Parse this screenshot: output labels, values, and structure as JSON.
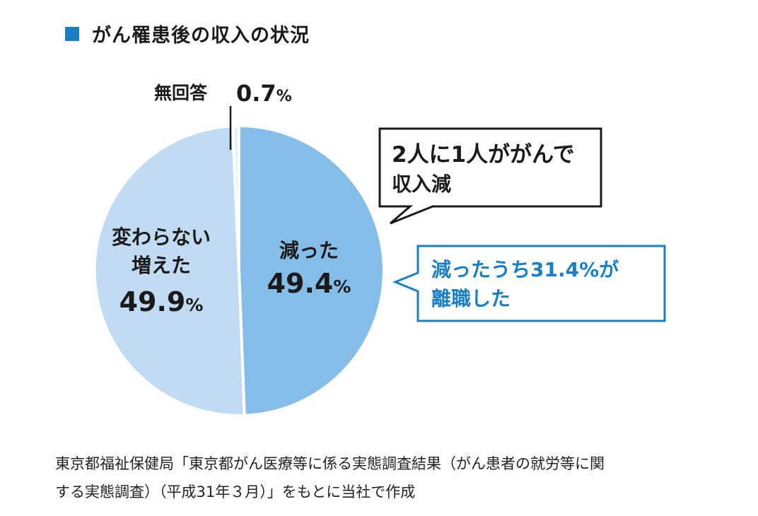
{
  "title": "がん罹患後の収入の状況",
  "colors": {
    "accent": "#1a7fc4",
    "slice_decreased": "#86bde8",
    "slice_unchanged": "#c1dcf2",
    "slice_no_answer": "#e4f0fa",
    "callout_blue": "#1a7fc4"
  },
  "chart_data": {
    "type": "pie",
    "title": "がん罹患後の収入の状況",
    "slices": [
      {
        "label": "減った",
        "value": 49.4,
        "display": "49.4",
        "unit": "%"
      },
      {
        "label": "変わらない 増えた",
        "label_lines": [
          "変わらない",
          "増えた"
        ],
        "value": 49.9,
        "display": "49.9",
        "unit": "%"
      },
      {
        "label": "無回答",
        "value": 0.7,
        "display": "0.7",
        "unit": "%"
      }
    ],
    "annotations": [
      {
        "lines": [
          "2人に1人ががんで",
          "収入減"
        ]
      },
      {
        "lines": [
          "減ったうち31.4%が",
          "離職した"
        ]
      }
    ]
  },
  "source": {
    "lines": [
      "東京都福祉保健局「東京都がん医療等に係る実態調査結果（がん患者の就労等に関",
      "する実態調査）（平成31年３月）」をもとに当社で作成"
    ]
  }
}
